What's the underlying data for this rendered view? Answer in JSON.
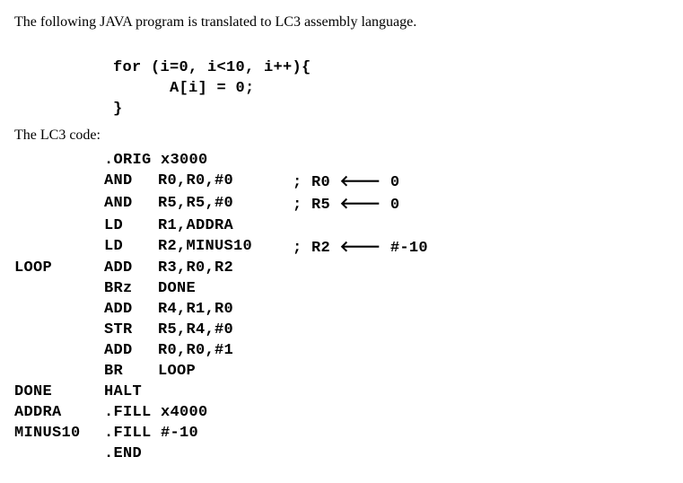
{
  "intro": "The following JAVA program is translated to LC3 assembly language.",
  "java": {
    "line1": "for (i=0, i<10, i++){",
    "line2": "      A[i] = 0;",
    "line3": "}"
  },
  "lc3_label": "The LC3 code:",
  "asm": [
    {
      "label": "",
      "op": "",
      "args": ".ORIG x3000",
      "comment": ""
    },
    {
      "label": "",
      "op": "AND",
      "args": "R0,R0,#0",
      "comment": "; R0 ← 0"
    },
    {
      "label": "",
      "op": "AND",
      "args": "R5,R5,#0",
      "comment": "; R5 ← 0"
    },
    {
      "label": "",
      "op": "LD",
      "args": "R1,ADDRA",
      "comment": ""
    },
    {
      "label": "",
      "op": "LD",
      "args": "R2,MINUS10",
      "comment": "; R2 ← #-10"
    },
    {
      "label": "LOOP",
      "op": "ADD",
      "args": "R3,R0,R2",
      "comment": ""
    },
    {
      "label": "",
      "op": "BRz",
      "args": "DONE",
      "comment": ""
    },
    {
      "label": "",
      "op": "ADD",
      "args": "R4,R1,R0",
      "comment": ""
    },
    {
      "label": "",
      "op": "STR",
      "args": "R5,R4,#0",
      "comment": ""
    },
    {
      "label": "",
      "op": "ADD",
      "args": "R0,R0,#1",
      "comment": ""
    },
    {
      "label": "",
      "op": "BR",
      "args": "LOOP",
      "comment": ""
    },
    {
      "label": "DONE",
      "op": "HALT",
      "args": "",
      "comment": ""
    },
    {
      "label": "ADDRA",
      "op": ".FILL x4000",
      "args": "",
      "comment": ""
    },
    {
      "label": "MINUS10",
      "op": ".FILL #-10",
      "args": "",
      "comment": ""
    },
    {
      "label": "",
      "op": ".END",
      "args": "",
      "comment": ""
    }
  ]
}
